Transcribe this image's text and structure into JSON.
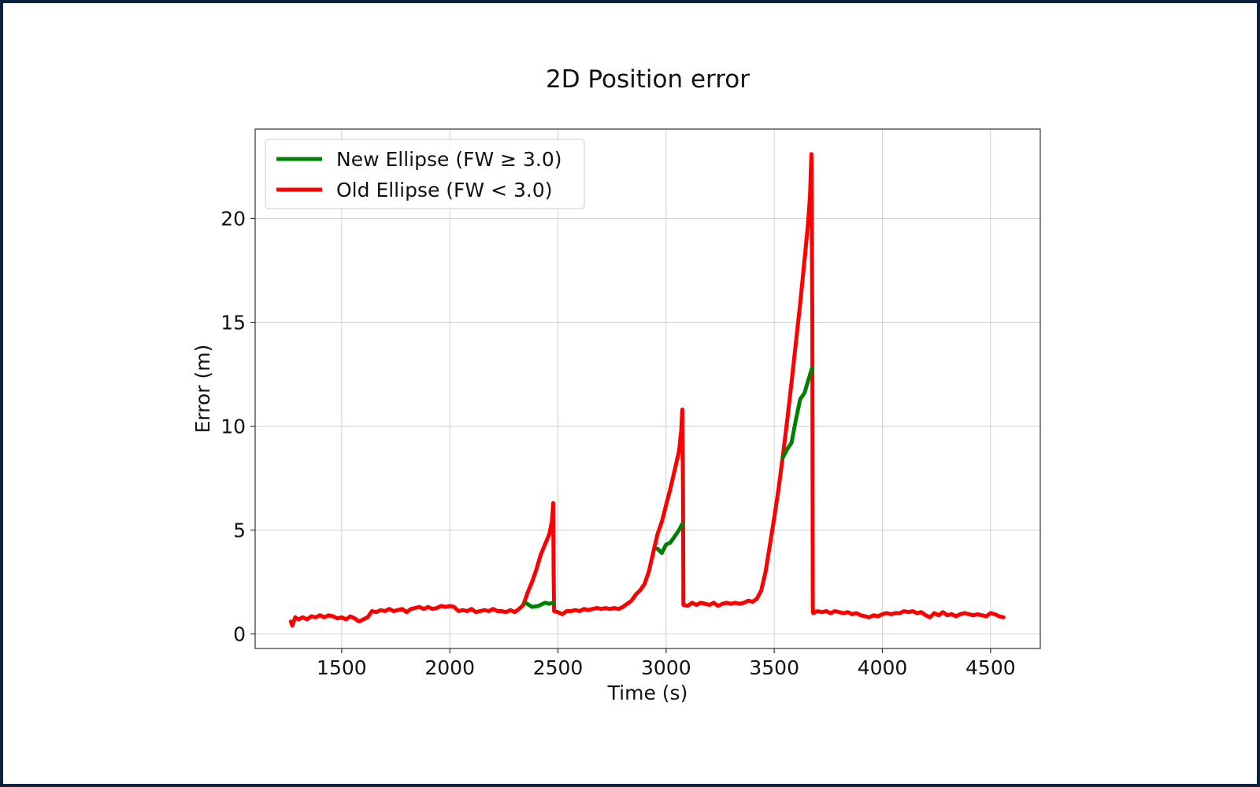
{
  "chart_data": {
    "type": "line",
    "title": "2D Position error",
    "xlabel": "Time (s)",
    "ylabel": "Error (m)",
    "xlim": [
      1100,
      4730
    ],
    "ylim": [
      -0.7,
      24.3
    ],
    "xticks": [
      1500,
      2000,
      2500,
      3000,
      3500,
      4000,
      4500
    ],
    "yticks": [
      0,
      5,
      10,
      15,
      20
    ],
    "grid": true,
    "legend_position": "top-left",
    "series": [
      {
        "name": "New Ellipse (FW ≥ 3.0)",
        "color": "#008000",
        "segments": [
          [
            [
              2350,
              1.5
            ],
            [
              2380,
              1.3
            ],
            [
              2410,
              1.35
            ],
            [
              2440,
              1.5
            ],
            [
              2460,
              1.45
            ],
            [
              2480,
              1.5
            ]
          ],
          [
            [
              2960,
              4.1
            ],
            [
              2980,
              3.9
            ],
            [
              3000,
              4.3
            ],
            [
              3020,
              4.4
            ],
            [
              3040,
              4.7
            ],
            [
              3060,
              5.0
            ],
            [
              3075,
              5.3
            ]
          ],
          [
            [
              3540,
              8.5
            ],
            [
              3560,
              8.9
            ],
            [
              3580,
              9.2
            ],
            [
              3600,
              10.3
            ],
            [
              3620,
              11.3
            ],
            [
              3640,
              11.6
            ],
            [
              3660,
              12.3
            ],
            [
              3675,
              12.8
            ]
          ]
        ]
      },
      {
        "name": "Old Ellipse (FW < 3.0)",
        "color": "#ff0000",
        "segments": [
          [
            [
              1265,
              0.6
            ],
            [
              1272,
              0.4
            ],
            [
              1285,
              0.8
            ],
            [
              1300,
              0.7
            ],
            [
              1320,
              0.8
            ],
            [
              1340,
              0.7
            ],
            [
              1360,
              0.85
            ],
            [
              1380,
              0.8
            ],
            [
              1400,
              0.9
            ],
            [
              1420,
              0.8
            ],
            [
              1440,
              0.9
            ],
            [
              1460,
              0.85
            ],
            [
              1480,
              0.75
            ],
            [
              1500,
              0.8
            ],
            [
              1520,
              0.7
            ],
            [
              1540,
              0.85
            ],
            [
              1560,
              0.75
            ],
            [
              1580,
              0.6
            ],
            [
              1600,
              0.7
            ],
            [
              1620,
              0.8
            ],
            [
              1640,
              1.1
            ],
            [
              1660,
              1.05
            ],
            [
              1680,
              1.15
            ],
            [
              1700,
              1.1
            ],
            [
              1720,
              1.2
            ],
            [
              1740,
              1.1
            ],
            [
              1760,
              1.15
            ],
            [
              1780,
              1.2
            ],
            [
              1800,
              1.05
            ],
            [
              1820,
              1.2
            ],
            [
              1840,
              1.25
            ],
            [
              1860,
              1.3
            ],
            [
              1880,
              1.2
            ],
            [
              1900,
              1.3
            ],
            [
              1920,
              1.2
            ],
            [
              1940,
              1.25
            ],
            [
              1960,
              1.35
            ],
            [
              1980,
              1.3
            ],
            [
              2000,
              1.35
            ],
            [
              2020,
              1.3
            ],
            [
              2040,
              1.1
            ],
            [
              2060,
              1.15
            ],
            [
              2080,
              1.1
            ],
            [
              2100,
              1.2
            ],
            [
              2120,
              1.05
            ],
            [
              2140,
              1.1
            ],
            [
              2160,
              1.15
            ],
            [
              2180,
              1.1
            ],
            [
              2200,
              1.2
            ],
            [
              2220,
              1.1
            ],
            [
              2240,
              1.1
            ],
            [
              2260,
              1.05
            ],
            [
              2280,
              1.15
            ],
            [
              2300,
              1.05
            ],
            [
              2320,
              1.2
            ],
            [
              2340,
              1.4
            ],
            [
              2360,
              2.0
            ],
            [
              2380,
              2.5
            ],
            [
              2400,
              3.1
            ],
            [
              2420,
              3.8
            ],
            [
              2440,
              4.3
            ],
            [
              2460,
              4.8
            ],
            [
              2472,
              5.4
            ],
            [
              2478,
              6.3
            ],
            [
              2480,
              3.0
            ],
            [
              2482,
              1.1
            ],
            [
              2500,
              1.05
            ],
            [
              2520,
              0.95
            ],
            [
              2540,
              1.1
            ],
            [
              2560,
              1.1
            ],
            [
              2580,
              1.15
            ],
            [
              2600,
              1.1
            ],
            [
              2620,
              1.2
            ],
            [
              2640,
              1.15
            ],
            [
              2660,
              1.2
            ],
            [
              2680,
              1.25
            ],
            [
              2700,
              1.2
            ],
            [
              2720,
              1.25
            ],
            [
              2740,
              1.2
            ],
            [
              2760,
              1.25
            ],
            [
              2780,
              1.2
            ],
            [
              2800,
              1.3
            ],
            [
              2820,
              1.45
            ],
            [
              2840,
              1.6
            ],
            [
              2860,
              1.9
            ],
            [
              2880,
              2.1
            ],
            [
              2900,
              2.4
            ],
            [
              2920,
              3.0
            ],
            [
              2940,
              3.9
            ],
            [
              2960,
              4.8
            ],
            [
              2980,
              5.4
            ],
            [
              3000,
              6.2
            ],
            [
              3020,
              7.0
            ],
            [
              3040,
              7.9
            ],
            [
              3060,
              8.8
            ],
            [
              3070,
              9.8
            ],
            [
              3075,
              10.8
            ],
            [
              3078,
              7.0
            ],
            [
              3080,
              1.4
            ],
            [
              3100,
              1.35
            ],
            [
              3120,
              1.5
            ],
            [
              3140,
              1.4
            ],
            [
              3160,
              1.5
            ],
            [
              3180,
              1.45
            ],
            [
              3200,
              1.4
            ],
            [
              3220,
              1.5
            ],
            [
              3240,
              1.35
            ],
            [
              3260,
              1.45
            ],
            [
              3280,
              1.5
            ],
            [
              3300,
              1.45
            ],
            [
              3320,
              1.5
            ],
            [
              3340,
              1.45
            ],
            [
              3360,
              1.5
            ],
            [
              3380,
              1.6
            ],
            [
              3400,
              1.55
            ],
            [
              3420,
              1.7
            ],
            [
              3440,
              2.1
            ],
            [
              3460,
              3.0
            ],
            [
              3480,
              4.3
            ],
            [
              3500,
              5.6
            ],
            [
              3520,
              7.0
            ],
            [
              3540,
              8.6
            ],
            [
              3560,
              10.3
            ],
            [
              3580,
              12.1
            ],
            [
              3600,
              14.0
            ],
            [
              3620,
              15.9
            ],
            [
              3640,
              18.0
            ],
            [
              3655,
              19.6
            ],
            [
              3665,
              21.0
            ],
            [
              3672,
              23.1
            ],
            [
              3676,
              15.0
            ],
            [
              3678,
              1.3
            ],
            [
              3680,
              1.0
            ],
            [
              3700,
              1.1
            ],
            [
              3720,
              1.05
            ],
            [
              3740,
              1.1
            ],
            [
              3760,
              1.0
            ],
            [
              3780,
              1.1
            ],
            [
              3800,
              1.05
            ],
            [
              3820,
              1.0
            ],
            [
              3840,
              1.05
            ],
            [
              3860,
              0.95
            ],
            [
              3880,
              1.0
            ],
            [
              3900,
              0.9
            ],
            [
              3920,
              0.85
            ],
            [
              3940,
              0.8
            ],
            [
              3960,
              0.9
            ],
            [
              3980,
              0.85
            ],
            [
              4000,
              0.95
            ],
            [
              4020,
              1.0
            ],
            [
              4040,
              0.95
            ],
            [
              4060,
              1.0
            ],
            [
              4080,
              1.0
            ],
            [
              4100,
              1.1
            ],
            [
              4120,
              1.05
            ],
            [
              4140,
              1.1
            ],
            [
              4160,
              1.0
            ],
            [
              4180,
              1.05
            ],
            [
              4200,
              0.9
            ],
            [
              4220,
              0.8
            ],
            [
              4240,
              1.0
            ],
            [
              4260,
              0.9
            ],
            [
              4280,
              1.05
            ],
            [
              4300,
              0.9
            ],
            [
              4320,
              0.95
            ],
            [
              4340,
              0.85
            ],
            [
              4360,
              0.95
            ],
            [
              4380,
              1.0
            ],
            [
              4400,
              0.95
            ],
            [
              4420,
              0.9
            ],
            [
              4440,
              0.95
            ],
            [
              4460,
              0.9
            ],
            [
              4480,
              0.85
            ],
            [
              4500,
              1.0
            ],
            [
              4520,
              0.95
            ],
            [
              4540,
              0.85
            ],
            [
              4560,
              0.8
            ]
          ]
        ]
      }
    ]
  }
}
